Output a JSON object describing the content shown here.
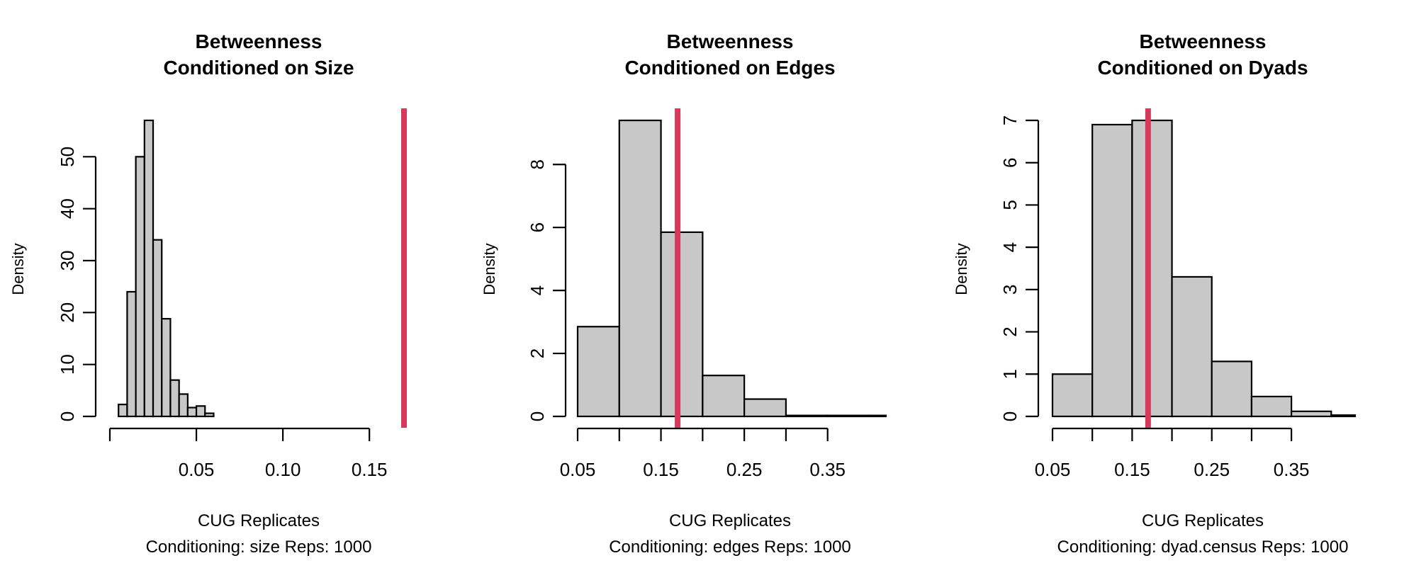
{
  "chart_data": [
    {
      "type": "bar",
      "title": "Betweenness\nConditioned on Size",
      "xlabel": "CUG Replicates",
      "sublabel": "Conditioning: size Reps: 1000",
      "ylabel": "Density",
      "xticks": [
        "0.05",
        "0.10",
        "0.15"
      ],
      "yticks": [
        "0",
        "10",
        "20",
        "30",
        "40",
        "50"
      ],
      "xlim": [
        0.0,
        0.17
      ],
      "ylim": [
        0,
        57
      ],
      "bin_width": 0.005,
      "bins": [
        {
          "x0": 0.005,
          "x1": 0.01,
          "density": 2.3
        },
        {
          "x0": 0.01,
          "x1": 0.015,
          "density": 24.0
        },
        {
          "x0": 0.015,
          "x1": 0.02,
          "density": 50.0
        },
        {
          "x0": 0.02,
          "x1": 0.025,
          "density": 57.0
        },
        {
          "x0": 0.025,
          "x1": 0.03,
          "density": 34.0
        },
        {
          "x0": 0.03,
          "x1": 0.035,
          "density": 18.8
        },
        {
          "x0": 0.035,
          "x1": 0.04,
          "density": 7.0
        },
        {
          "x0": 0.04,
          "x1": 0.045,
          "density": 4.3
        },
        {
          "x0": 0.045,
          "x1": 0.05,
          "density": 1.7
        },
        {
          "x0": 0.05,
          "x1": 0.055,
          "density": 2.0
        },
        {
          "x0": 0.055,
          "x1": 0.06,
          "density": 0.6
        }
      ],
      "observed": 0.17,
      "observed_color": "#d6395c",
      "bar_fill": "#c8c8c8"
    },
    {
      "type": "bar",
      "title": "Betweenness\nConditioned on Edges",
      "xlabel": "CUG Replicates",
      "sublabel": "Conditioning: edges Reps: 1000",
      "ylabel": "Density",
      "xticks": [
        "0.05",
        "0.15",
        "0.25",
        "0.35"
      ],
      "yticks": [
        "0",
        "2",
        "4",
        "6",
        "8"
      ],
      "xlim": [
        0.05,
        0.42
      ],
      "ylim": [
        0,
        9.4
      ],
      "bin_width": 0.05,
      "bins": [
        {
          "x0": 0.05,
          "x1": 0.1,
          "density": 2.85
        },
        {
          "x0": 0.1,
          "x1": 0.15,
          "density": 9.4
        },
        {
          "x0": 0.15,
          "x1": 0.2,
          "density": 5.85
        },
        {
          "x0": 0.2,
          "x1": 0.25,
          "density": 1.3
        },
        {
          "x0": 0.25,
          "x1": 0.3,
          "density": 0.55
        },
        {
          "x0": 0.3,
          "x1": 0.35,
          "density": 0.03
        },
        {
          "x0": 0.35,
          "x1": 0.4,
          "density": 0.03
        },
        {
          "x0": 0.4,
          "x1": 0.42,
          "density": 0.03
        }
      ],
      "observed": 0.17,
      "observed_color": "#d6395c",
      "bar_fill": "#c8c8c8"
    },
    {
      "type": "bar",
      "title": "Betweenness\nConditioned on Dyads",
      "xlabel": "CUG Replicates",
      "sublabel": "Conditioning: dyad.census Reps: 1000",
      "ylabel": "Density",
      "xticks": [
        "0.05",
        "0.15",
        "0.25",
        "0.35"
      ],
      "yticks": [
        "0",
        "1",
        "2",
        "3",
        "4",
        "5",
        "6",
        "7"
      ],
      "xlim": [
        0.05,
        0.43
      ],
      "ylim": [
        0,
        7
      ],
      "bin_width": 0.05,
      "bins": [
        {
          "x0": 0.05,
          "x1": 0.1,
          "density": 1.0
        },
        {
          "x0": 0.1,
          "x1": 0.15,
          "density": 6.9
        },
        {
          "x0": 0.15,
          "x1": 0.2,
          "density": 7.0
        },
        {
          "x0": 0.2,
          "x1": 0.25,
          "density": 3.3
        },
        {
          "x0": 0.25,
          "x1": 0.3,
          "density": 1.3
        },
        {
          "x0": 0.3,
          "x1": 0.35,
          "density": 0.47
        },
        {
          "x0": 0.35,
          "x1": 0.4,
          "density": 0.12
        },
        {
          "x0": 0.4,
          "x1": 0.43,
          "density": 0.03
        }
      ],
      "observed": 0.17,
      "observed_color": "#d6395c",
      "bar_fill": "#c8c8c8"
    }
  ]
}
